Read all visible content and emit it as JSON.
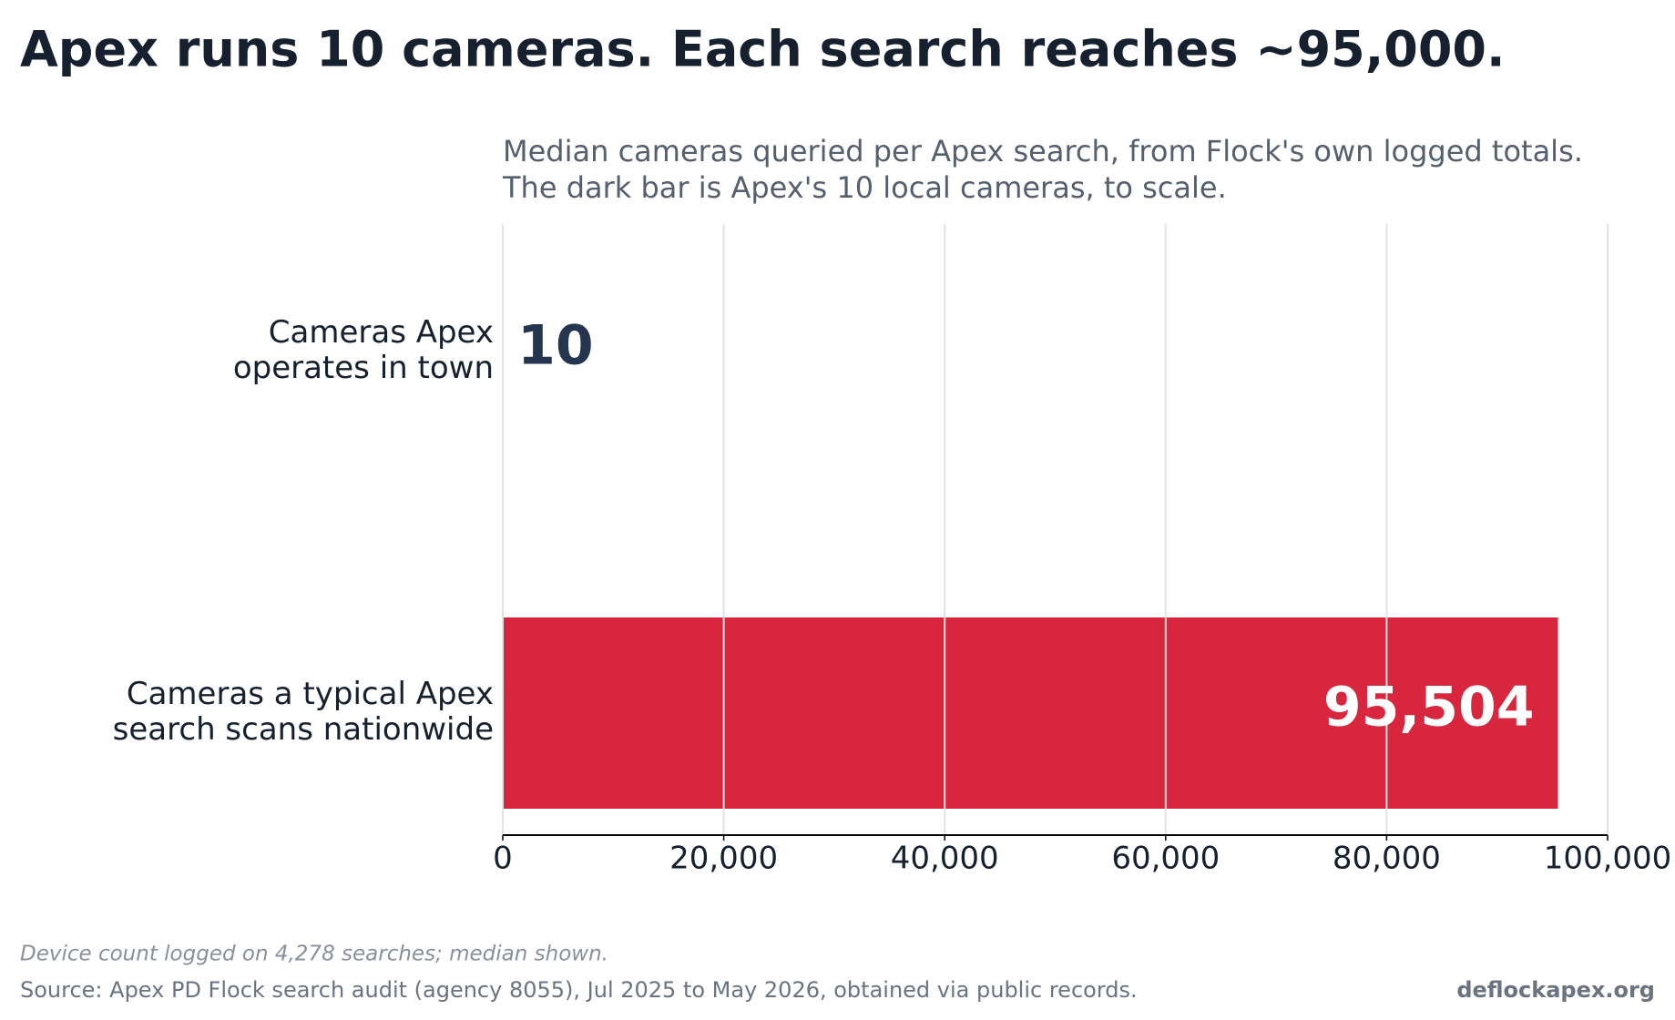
{
  "chart_data": {
    "type": "barh",
    "title": "Apex runs 10 cameras. Each search reaches ~95,000.",
    "subtitle": [
      "Median cameras queried per Apex search, from Flock's own logged totals.",
      "The dark bar is Apex's 10 local cameras, to scale."
    ],
    "categories": [
      [
        "Cameras Apex",
        "operates in town"
      ],
      [
        "Cameras a typical Apex",
        "search scans nationwide"
      ]
    ],
    "values": [
      10,
      95504
    ],
    "value_labels": [
      "10",
      "95,504"
    ],
    "colors": [
      "#25344f",
      "#d7263d"
    ],
    "xlim": [
      0,
      100000
    ],
    "xticks": [
      0,
      {
        "value": 20000,
        "label": "20,000"
      },
      {
        "value": 40000,
        "label": "40,000"
      },
      {
        "value": 60000,
        "label": "60,000"
      },
      {
        "value": 80000,
        "label": "80,000"
      },
      {
        "value": 100000,
        "label": "100,000"
      }
    ],
    "grid": true,
    "note": "Device count logged on 4,278 searches; median shown.",
    "source": "Source: Apex PD Flock search audit (agency 8055), Jul 2025 to May 2026, obtained via public records.",
    "credit": "deflockapex.org"
  }
}
